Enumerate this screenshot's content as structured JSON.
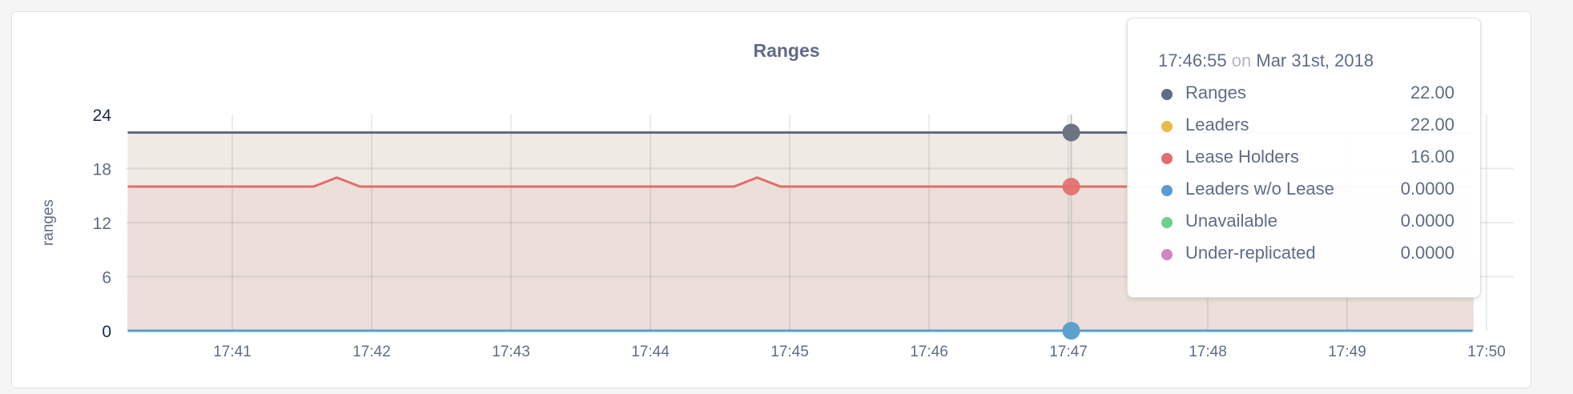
{
  "chart_data": {
    "type": "area",
    "title": "Ranges",
    "ylabel": "ranges",
    "xlabel": "",
    "ylim": [
      0,
      24
    ],
    "yticks": [
      "0",
      "6",
      "12",
      "18",
      "24"
    ],
    "xticks": [
      "17:41",
      "17:42",
      "17:43",
      "17:44",
      "17:45",
      "17:46",
      "17:47",
      "17:48",
      "17:49",
      "17:50"
    ],
    "xrange": [
      "17:40:15",
      "17:49:54"
    ],
    "grid": true,
    "series": [
      {
        "name": "Ranges",
        "color": "#5f6c87",
        "points": [
          [
            "17:40:15",
            22
          ],
          [
            "17:49:54",
            22
          ]
        ]
      },
      {
        "name": "Leaders",
        "color": "#e9b949",
        "points": [
          [
            "17:40:15",
            22
          ],
          [
            "17:49:54",
            22
          ]
        ]
      },
      {
        "name": "Lease Holders",
        "color": "#e36d6a",
        "points": [
          [
            "17:40:15",
            16
          ],
          [
            "17:41:35",
            16
          ],
          [
            "17:41:45",
            17
          ],
          [
            "17:41:55",
            16
          ],
          [
            "17:44:36",
            16
          ],
          [
            "17:44:46",
            17
          ],
          [
            "17:44:56",
            16
          ],
          [
            "17:49:54",
            16
          ]
        ]
      },
      {
        "name": "Leaders w/o Lease",
        "color": "#5a9bd4",
        "points": [
          [
            "17:40:15",
            0
          ],
          [
            "17:49:54",
            0
          ]
        ]
      },
      {
        "name": "Unavailable",
        "color": "#6fd08e",
        "points": [
          [
            "17:40:15",
            0
          ],
          [
            "17:49:54",
            0
          ]
        ]
      },
      {
        "name": "Under-replicated",
        "color": "#cf85c0",
        "points": [
          [
            "17:40:15",
            0
          ],
          [
            "17:49:54",
            0
          ]
        ]
      }
    ]
  },
  "tooltip": {
    "time": "17:46:55",
    "on": "on",
    "date": "Mar 31st, 2018",
    "rows": [
      {
        "label": "Ranges",
        "value": "22.00",
        "color": "#5f6c87"
      },
      {
        "label": "Leaders",
        "value": "22.00",
        "color": "#e9b949"
      },
      {
        "label": "Lease Holders",
        "value": "16.00",
        "color": "#e36d6a"
      },
      {
        "label": "Leaders w/o Lease",
        "value": "0.0000",
        "color": "#5a9bd4"
      },
      {
        "label": "Unavailable",
        "value": "0.0000",
        "color": "#6fd08e"
      },
      {
        "label": "Under-replicated",
        "value": "0.0000",
        "color": "#cf85c0"
      }
    ]
  }
}
